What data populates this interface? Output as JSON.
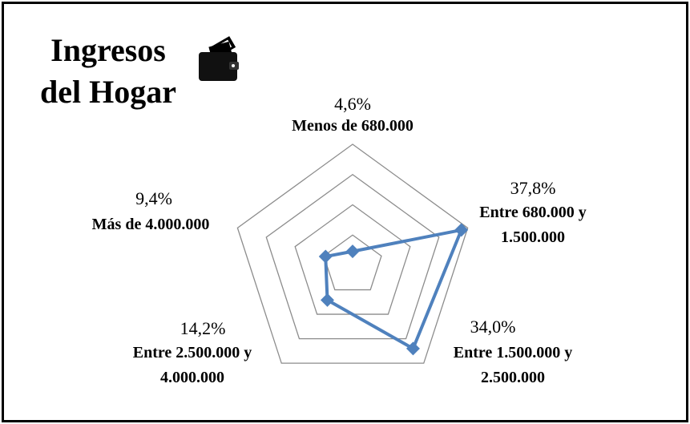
{
  "chart_data": {
    "type": "radar",
    "title": "Ingresos del Hogar",
    "categories": [
      "Menos de 680.000",
      "Entre 680.000 y 1.500.000",
      "Entre 1.500.000 y 2.500.000",
      "Entre 2.500.000 y 4.000.000",
      "Más de 4.000.000"
    ],
    "values": [
      4.6,
      37.8,
      34.0,
      14.2,
      9.4
    ],
    "value_labels": [
      "4,6%",
      "37,8%",
      "34,0%",
      "14,2%",
      "9,4%"
    ],
    "color": "#4f81bd",
    "ylim": [
      0,
      40
    ],
    "yticks": [
      10,
      20,
      30,
      40
    ],
    "grid": true
  }
}
